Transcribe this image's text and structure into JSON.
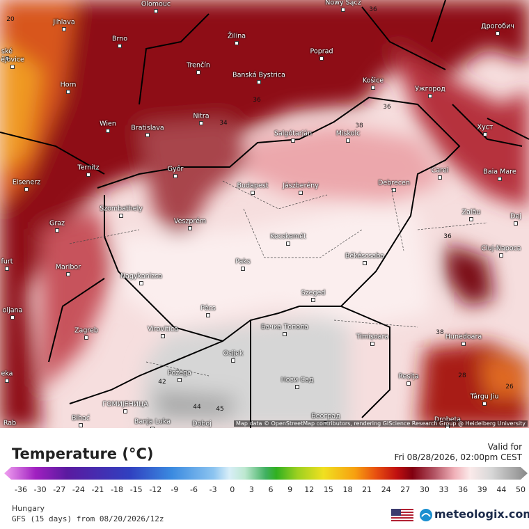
{
  "map": {
    "cities": [
      "Olomouc",
      "Nowy Sącz",
      "Jihlava",
      "Žilina",
      "Дрогобич",
      "Brno",
      "Poprad",
      "ské",
      "ějovice",
      "Trenčín",
      "Banská Bystrica",
      "Horn",
      "Košice",
      "Ужгород",
      "Nitra",
      "Wien",
      "Bratislava",
      "Salgótarján",
      "Miskolc",
      "Хуст",
      "Ternitz",
      "Győr",
      "Carei",
      "Baia Mare",
      "Eisenerz",
      "Budapest",
      "Jászberény",
      "Debrecen",
      "Szombathely",
      "Zalău",
      "Graz",
      "Veszprém",
      "Dej",
      "Kecskemét",
      "Cluj-Napoca",
      "furt",
      "Paks",
      "Békéscsaba",
      "Maribor",
      "Nagykanizsa",
      "oljana",
      "Szeged",
      "Pécs",
      "Zagreb",
      "Virovitica",
      "Бачка Топола",
      "Timișoara",
      "Hunedoara",
      "Osijek",
      "eka",
      "Požega",
      "Нови Сад",
      "Reșița",
      "Târgu Jiu",
      "ГОМИЈЕНИЦА",
      "Bihać",
      "Banja Luka",
      "Doboj",
      "Београд",
      "Drobeta",
      "Rab"
    ],
    "contour_labels": [
      20,
      36,
      36,
      34,
      38,
      36,
      36,
      42,
      44,
      45,
      38,
      28,
      26
    ],
    "attribution": "Map data © OpenStreetMap contributors, rendering GIScience Research Group @ Heidelberg University"
  },
  "legend": {
    "title": "Temperature (°C)",
    "ticks": [
      -36,
      -30,
      -27,
      -24,
      -21,
      -18,
      -15,
      -12,
      -9,
      -6,
      -3,
      0,
      3,
      6,
      9,
      12,
      15,
      18,
      21,
      24,
      27,
      30,
      33,
      36,
      39,
      44,
      50
    ]
  },
  "valid": {
    "label": "Valid for",
    "time": "Fri 08/28/2026, 02:00pm CEST"
  },
  "footer": {
    "region": "Hungary",
    "model": "GFS (15 days) from 08/20/2026/12z",
    "brand": "meteologix.com"
  }
}
